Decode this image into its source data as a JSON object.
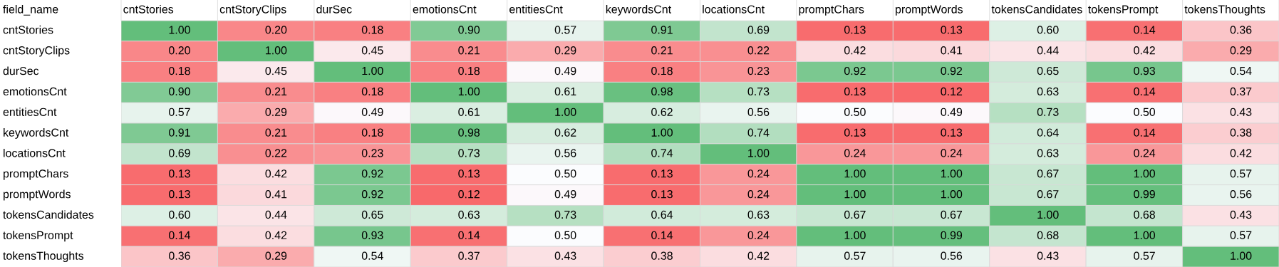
{
  "chart_data": {
    "type": "heatmap",
    "annotations": [
      "field_name"
    ],
    "categories": [
      "cntStories",
      "cntStoryClips",
      "durSec",
      "emotionsCnt",
      "entitiesCnt",
      "keywordsCnt",
      "locationsCnt",
      "promptChars",
      "promptWords",
      "tokensCandidates",
      "tokensPrompt",
      "tokensThoughts"
    ],
    "y_categories": [
      "cntStories",
      "cntStoryClips",
      "durSec",
      "emotionsCnt",
      "entitiesCnt",
      "keywordsCnt",
      "locationsCnt",
      "promptChars",
      "promptWords",
      "tokensCandidates",
      "tokensPrompt",
      "tokensThoughts"
    ],
    "cells": [
      [
        1.0,
        0.2,
        0.18,
        0.9,
        0.57,
        0.91,
        0.69,
        0.13,
        0.13,
        0.6,
        0.14,
        0.36
      ],
      [
        0.2,
        1.0,
        0.45,
        0.21,
        0.29,
        0.21,
        0.22,
        0.42,
        0.41,
        0.44,
        0.42,
        0.29
      ],
      [
        0.18,
        0.45,
        1.0,
        0.18,
        0.49,
        0.18,
        0.23,
        0.92,
        0.92,
        0.65,
        0.93,
        0.54
      ],
      [
        0.9,
        0.21,
        0.18,
        1.0,
        0.61,
        0.98,
        0.73,
        0.13,
        0.12,
        0.63,
        0.14,
        0.37
      ],
      [
        0.57,
        0.29,
        0.49,
        0.61,
        1.0,
        0.62,
        0.56,
        0.5,
        0.49,
        0.73,
        0.5,
        0.43
      ],
      [
        0.91,
        0.21,
        0.18,
        0.98,
        0.62,
        1.0,
        0.74,
        0.13,
        0.13,
        0.64,
        0.14,
        0.38
      ],
      [
        0.69,
        0.22,
        0.23,
        0.73,
        0.56,
        0.74,
        1.0,
        0.24,
        0.24,
        0.63,
        0.24,
        0.42
      ],
      [
        0.13,
        0.42,
        0.92,
        0.13,
        0.5,
        0.13,
        0.24,
        1.0,
        1.0,
        0.67,
        1.0,
        0.57
      ],
      [
        0.13,
        0.41,
        0.92,
        0.12,
        0.49,
        0.13,
        0.24,
        1.0,
        1.0,
        0.67,
        0.99,
        0.56
      ],
      [
        0.6,
        0.44,
        0.65,
        0.63,
        0.73,
        0.64,
        0.63,
        0.67,
        0.67,
        1.0,
        0.68,
        0.43
      ],
      [
        0.14,
        0.42,
        0.93,
        0.14,
        0.5,
        0.14,
        0.24,
        1.0,
        0.99,
        0.68,
        1.0,
        0.57
      ],
      [
        0.36,
        0.29,
        0.54,
        0.37,
        0.43,
        0.38,
        0.42,
        0.57,
        0.56,
        0.43,
        0.57,
        1.0
      ]
    ],
    "cell_labels": [
      [
        "1.00",
        "0.20",
        "0.18",
        "0.90",
        "0.57",
        "0.91",
        "0.69",
        "0.13",
        "0.13",
        "0.60",
        "0.14",
        "0.36"
      ],
      [
        "0.20",
        "1.00",
        "0.45",
        "0.21",
        "0.29",
        "0.21",
        "0.22",
        "0.42",
        "0.41",
        "0.44",
        "0.42",
        "0.29"
      ],
      [
        "0.18",
        "0.45",
        "1.00",
        "0.18",
        "0.49",
        "0.18",
        "0.23",
        "0.92",
        "0.92",
        "0.65",
        "0.93",
        "0.54"
      ],
      [
        "0.90",
        "0.21",
        "0.18",
        "1.00",
        "0.61",
        "0.98",
        "0.73",
        "0.13",
        "0.12",
        "0.63",
        "0.14",
        "0.37"
      ],
      [
        "0.57",
        "0.29",
        "0.49",
        "0.61",
        "1.00",
        "0.62",
        "0.56",
        "0.50",
        "0.49",
        "0.73",
        "0.50",
        "0.43"
      ],
      [
        "0.91",
        "0.21",
        "0.18",
        "0.98",
        "0.62",
        "1.00",
        "0.74",
        "0.13",
        "0.13",
        "0.64",
        "0.14",
        "0.38"
      ],
      [
        "0.69",
        "0.22",
        "0.23",
        "0.73",
        "0.56",
        "0.74",
        "1.00",
        "0.24",
        "0.24",
        "0.63",
        "0.24",
        "0.42"
      ],
      [
        "0.13",
        "0.42",
        "0.92",
        "0.13",
        "0.50",
        "0.13",
        "0.24",
        "1.00",
        "1.00",
        "0.67",
        "1.00",
        "0.57"
      ],
      [
        "0.13",
        "0.41",
        "0.92",
        "0.12",
        "0.49",
        "0.13",
        "0.24",
        "1.00",
        "1.00",
        "0.67",
        "0.99",
        "0.56"
      ],
      [
        "0.60",
        "0.44",
        "0.65",
        "0.63",
        "0.73",
        "0.64",
        "0.63",
        "0.67",
        "0.67",
        "1.00",
        "0.68",
        "0.43"
      ],
      [
        "0.14",
        "0.42",
        "0.93",
        "0.14",
        "0.50",
        "0.14",
        "0.24",
        "1.00",
        "0.99",
        "0.68",
        "1.00",
        "0.57"
      ],
      [
        "0.36",
        "0.29",
        "0.54",
        "0.37",
        "0.43",
        "0.38",
        "0.42",
        "0.57",
        "0.56",
        "0.43",
        "0.57",
        "1.00"
      ]
    ]
  }
}
